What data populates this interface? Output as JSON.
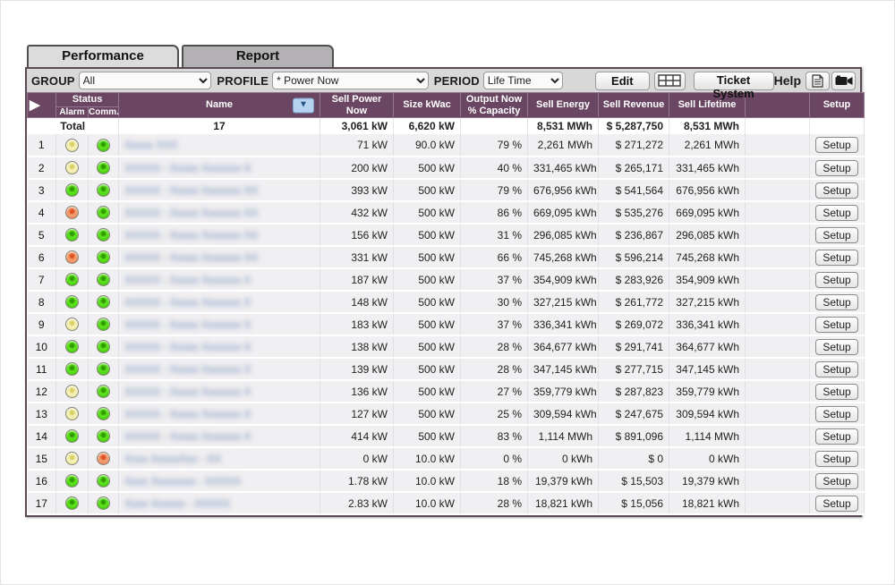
{
  "tabs": {
    "performance": "Performance",
    "report": "Report"
  },
  "toolbar": {
    "group_label": "GROUP",
    "group_value": "All",
    "profile_label": "PROFILE",
    "profile_value": "* Power Now",
    "period_label": "PERIOD",
    "period_value": "Life Time",
    "edit_button": "Edit",
    "ticket_button": "Ticket System",
    "help_label": "Help"
  },
  "table": {
    "headers": {
      "arrow": "▶",
      "status": "Status",
      "alarm": "Alarm",
      "comm": "Comm.",
      "name": "Name",
      "sort_icon": "▼",
      "sell_power_now": "Sell Power Now",
      "size_kwac": "Size kWac",
      "output_capacity": "Output Now % Capacity",
      "sell_energy": "Sell Energy",
      "sell_revenue": "Sell Revenue",
      "sell_lifetime": "Sell Lifetime",
      "setup": "Setup"
    },
    "total": {
      "label": "Total",
      "count": "17",
      "power": "3,061 kW",
      "size": "6,620 kW",
      "capacity": "",
      "energy": "8,531 MWh",
      "revenue": "$ 5,287,750",
      "lifetime": "8,531 MWh"
    },
    "setup_button_label": "Setup",
    "rows": [
      {
        "num": "1",
        "alarm": "yellow",
        "comm": "green",
        "name_blurred": "Xxxxx XXX",
        "power": "71 kW",
        "size": "90.0 kW",
        "capacity": "79 %",
        "energy": "2,261 MWh",
        "revenue": "$ 271,272",
        "lifetime": "2,261 MWh"
      },
      {
        "num": "2",
        "alarm": "yellow",
        "comm": "green",
        "name_blurred": "XXXXX - Xxxxx Xxxxxxx X",
        "power": "200 kW",
        "size": "500 kW",
        "capacity": "40 %",
        "energy": "331,465 kWh",
        "revenue": "$ 265,171",
        "lifetime": "331,465 kWh"
      },
      {
        "num": "3",
        "alarm": "green",
        "comm": "green",
        "name_blurred": "XXXXX - Xxxxx Xxxxxxx XX",
        "power": "393 kW",
        "size": "500 kW",
        "capacity": "79 %",
        "energy": "676,956 kWh",
        "revenue": "$ 541,564",
        "lifetime": "676,956 kWh"
      },
      {
        "num": "4",
        "alarm": "orange",
        "comm": "green",
        "name_blurred": "XXXXX - Xxxxx Xxxxxxx XX",
        "power": "432 kW",
        "size": "500 kW",
        "capacity": "86 %",
        "energy": "669,095 kWh",
        "revenue": "$ 535,276",
        "lifetime": "669,095 kWh"
      },
      {
        "num": "5",
        "alarm": "green",
        "comm": "green",
        "name_blurred": "XXXXX - Xxxxx Xxxxxxx XX",
        "power": "156 kW",
        "size": "500 kW",
        "capacity": "31 %",
        "energy": "296,085 kWh",
        "revenue": "$ 236,867",
        "lifetime": "296,085 kWh"
      },
      {
        "num": "6",
        "alarm": "orange",
        "comm": "green",
        "name_blurred": "XXXXX - Xxxxx Xxxxxxx XX",
        "power": "331 kW",
        "size": "500 kW",
        "capacity": "66 %",
        "energy": "745,268 kWh",
        "revenue": "$ 596,214",
        "lifetime": "745,268 kWh"
      },
      {
        "num": "7",
        "alarm": "green",
        "comm": "green",
        "name_blurred": "XXXXX - Xxxxx Xxxxxxx X",
        "power": "187 kW",
        "size": "500 kW",
        "capacity": "37 %",
        "energy": "354,909 kWh",
        "revenue": "$ 283,926",
        "lifetime": "354,909 kWh"
      },
      {
        "num": "8",
        "alarm": "green",
        "comm": "green",
        "name_blurred": "XXXXX - Xxxxx Xxxxxxx X",
        "power": "148 kW",
        "size": "500 kW",
        "capacity": "30 %",
        "energy": "327,215 kWh",
        "revenue": "$ 261,772",
        "lifetime": "327,215 kWh"
      },
      {
        "num": "9",
        "alarm": "yellow",
        "comm": "green",
        "name_blurred": "XXXXX - Xxxxx Xxxxxxx X",
        "power": "183 kW",
        "size": "500 kW",
        "capacity": "37 %",
        "energy": "336,341 kWh",
        "revenue": "$ 269,072",
        "lifetime": "336,341 kWh"
      },
      {
        "num": "10",
        "alarm": "green",
        "comm": "green",
        "name_blurred": "XXXXX - Xxxxx Xxxxxxx X",
        "power": "138 kW",
        "size": "500 kW",
        "capacity": "28 %",
        "energy": "364,677 kWh",
        "revenue": "$ 291,741",
        "lifetime": "364,677 kWh"
      },
      {
        "num": "11",
        "alarm": "green",
        "comm": "green",
        "name_blurred": "XXXXX - Xxxxx Xxxxxxx X",
        "power": "139 kW",
        "size": "500 kW",
        "capacity": "28 %",
        "energy": "347,145 kWh",
        "revenue": "$ 277,715",
        "lifetime": "347,145 kWh"
      },
      {
        "num": "12",
        "alarm": "yellow",
        "comm": "green",
        "name_blurred": "XXXXX - Xxxxx Xxxxxxx X",
        "power": "136 kW",
        "size": "500 kW",
        "capacity": "27 %",
        "energy": "359,779 kWh",
        "revenue": "$ 287,823",
        "lifetime": "359,779 kWh"
      },
      {
        "num": "13",
        "alarm": "yellow",
        "comm": "green",
        "name_blurred": "XXXXX - Xxxxx Xxxxxxx X",
        "power": "127 kW",
        "size": "500 kW",
        "capacity": "25 %",
        "energy": "309,594 kWh",
        "revenue": "$ 247,675",
        "lifetime": "309,594 kWh"
      },
      {
        "num": "14",
        "alarm": "green",
        "comm": "green",
        "name_blurred": "XXXXX - Xxxxx Xxxxxxx X",
        "power": "414 kW",
        "size": "500 kW",
        "capacity": "83 %",
        "energy": "1,114 MWh",
        "revenue": "$ 891,096",
        "lifetime": "1,114 MWh"
      },
      {
        "num": "15",
        "alarm": "yellow",
        "comm": "orange",
        "name_blurred": "Xxxx XxxxxXxx - XX",
        "power": "0 kW",
        "size": "10.0 kW",
        "capacity": "0 %",
        "energy": "0 kWh",
        "revenue": "$ 0",
        "lifetime": "0 kWh"
      },
      {
        "num": "16",
        "alarm": "green",
        "comm": "green",
        "name_blurred": "Xxxx Xxxxxxxx - XXXXX",
        "power": "1.78 kW",
        "size": "10.0 kW",
        "capacity": "18 %",
        "energy": "19,379 kWh",
        "revenue": "$ 15,503",
        "lifetime": "19,379 kWh"
      },
      {
        "num": "17",
        "alarm": "green",
        "comm": "green",
        "name_blurred": "Xxxx Xxxxxx - XXXXX",
        "power": "2.83 kW",
        "size": "10.0 kW",
        "capacity": "28 %",
        "energy": "18,821 kWh",
        "revenue": "$ 15,056",
        "lifetime": "18,821 kWh"
      }
    ]
  },
  "colors": {
    "header_purple": "#6a4662",
    "frame_border": "#594a56",
    "led_green": "#46cc10",
    "led_yellow": "#efe9a0",
    "led_orange": "#eb8e5e",
    "sort_button_blue": "#b5d2ef"
  }
}
